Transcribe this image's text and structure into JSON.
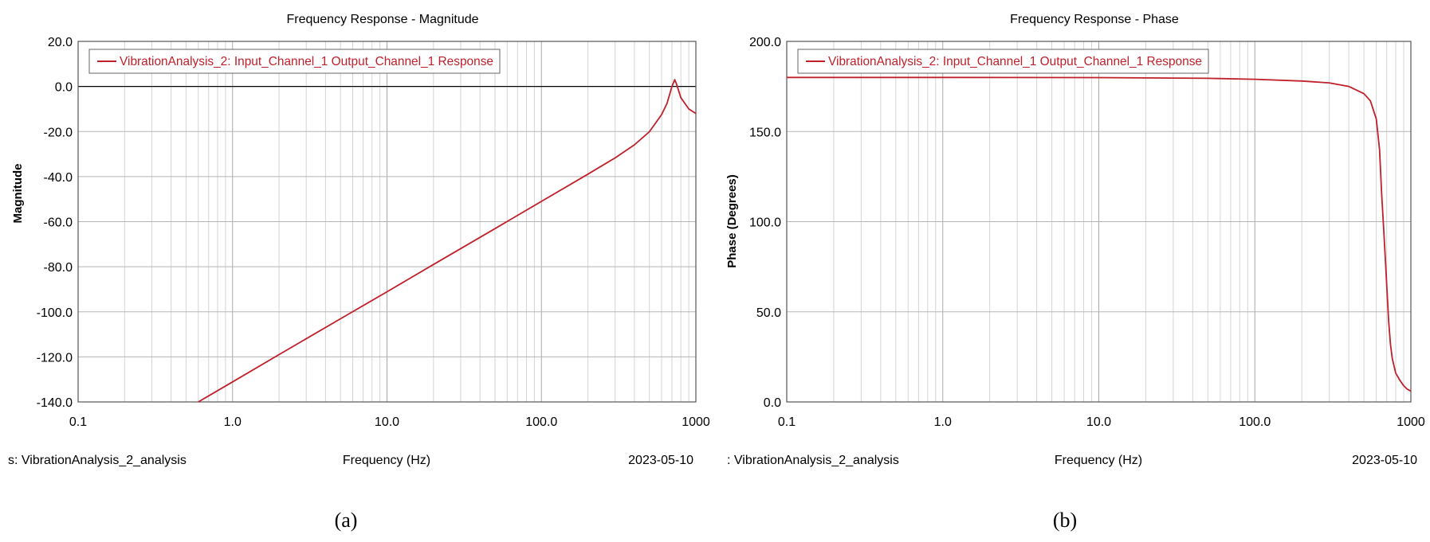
{
  "figure": {
    "caption_a": "(a)",
    "caption_b": "(b)"
  },
  "chart_data": [
    {
      "type": "line",
      "title": "Frequency Response - Magnitude",
      "xlabel": "Frequency (Hz)",
      "ylabel": "Magnitude",
      "x_scale": "log",
      "xlim": [
        0.1,
        1000
      ],
      "ylim": [
        -140,
        20
      ],
      "x_ticks": [
        "0.1",
        "1.0",
        "10.0",
        "100.0",
        "1000"
      ],
      "y_ticks": [
        "20.0",
        "0.0",
        "-20.0",
        "-40.0",
        "-60.0",
        "-80.0",
        "-100.0",
        "-120.0",
        "-140.0"
      ],
      "grid": true,
      "legend_position": "top-left",
      "footer_left": "s:  VibrationAnalysis_2_analysis",
      "footer_right": "2023-05-10",
      "series": [
        {
          "name": "VibrationAnalysis_2: Input_Channel_1 Output_Channel_1 Response",
          "color": "#c0202a",
          "x": [
            0.6,
            1,
            2,
            5,
            10,
            20,
            50,
            100,
            200,
            300,
            400,
            500,
            600,
            650,
            700,
            730,
            750,
            800,
            900,
            1000
          ],
          "y": [
            -140,
            -131.1,
            -119,
            -103.1,
            -91.1,
            -79,
            -63.1,
            -51,
            -38.9,
            -31.7,
            -25.9,
            -20.1,
            -12.5,
            -7.5,
            0,
            3,
            1,
            -5,
            -10,
            -12
          ]
        }
      ]
    },
    {
      "type": "line",
      "title": "Frequency Response - Phase",
      "xlabel": "Frequency (Hz)",
      "ylabel": "Phase (Degrees)",
      "x_scale": "log",
      "xlim": [
        0.1,
        1000
      ],
      "ylim": [
        0,
        200
      ],
      "x_ticks": [
        "0.1",
        "1.0",
        "10.0",
        "100.0",
        "1000"
      ],
      "y_ticks": [
        "200.0",
        "150.0",
        "100.0",
        "50.0",
        "0.0"
      ],
      "grid": true,
      "legend_position": "top-left",
      "footer_left": ":  VibrationAnalysis_2_analysis",
      "footer_right": "2023-05-10",
      "series": [
        {
          "name": "VibrationAnalysis_2: Input_Channel_1 Output_Channel_1 Response",
          "color": "#c0202a",
          "x": [
            0.1,
            1,
            10,
            50,
            100,
            200,
            300,
            400,
            500,
            550,
            600,
            630,
            650,
            670,
            690,
            700,
            710,
            720,
            740,
            760,
            800,
            850,
            900,
            950,
            1000
          ],
          "y": [
            180,
            180,
            179.9,
            179.5,
            179,
            178,
            177,
            175,
            171,
            167,
            157,
            140,
            115,
            95,
            75,
            65,
            55,
            45,
            32,
            24,
            16,
            12,
            9,
            7,
            6
          ]
        }
      ]
    }
  ]
}
